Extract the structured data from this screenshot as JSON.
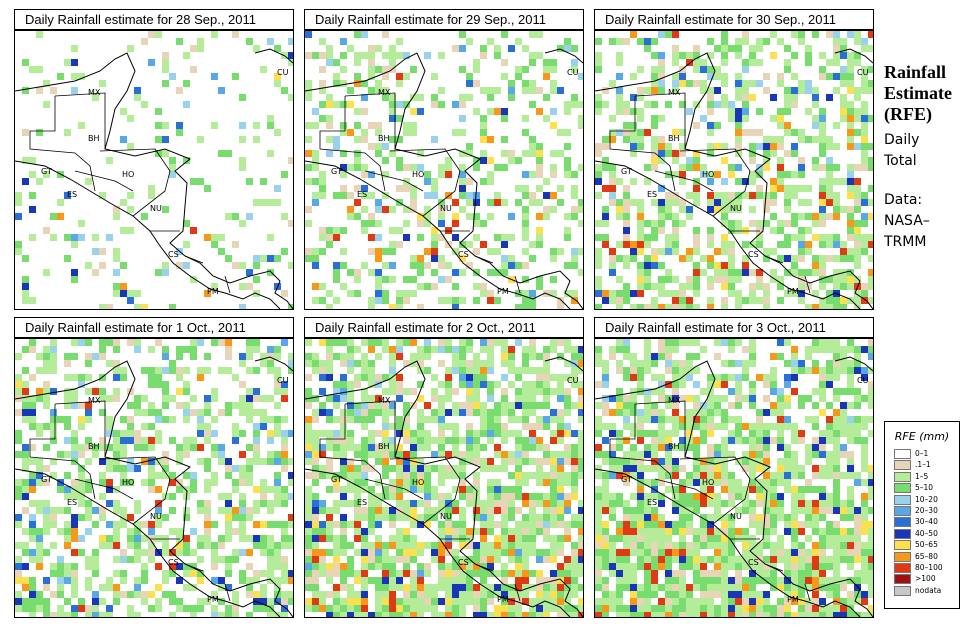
{
  "panels": [
    {
      "title": "Daily Rainfall estimate for  28 Sep., 2011",
      "wet": 0.12,
      "heavy": 0.05,
      "seed": 11
    },
    {
      "title": "Daily Rainfall estimate for  29 Sep., 2011",
      "wet": 0.3,
      "heavy": 0.18,
      "seed": 23
    },
    {
      "title": "Daily Rainfall estimate for  30 Sep., 2011",
      "wet": 0.42,
      "heavy": 0.35,
      "seed": 37
    },
    {
      "title": "Daily Rainfall estimate for  1 Oct., 2011",
      "wet": 0.45,
      "heavy": 0.25,
      "seed": 41
    },
    {
      "title": "Daily Rainfall estimate for  2 Oct., 2011",
      "wet": 0.62,
      "heavy": 0.4,
      "seed": 53
    },
    {
      "title": "Daily Rainfall estimate for  3 Oct., 2011",
      "wet": 0.58,
      "heavy": 0.55,
      "seed": 67
    }
  ],
  "countries": [
    "MX",
    "BH",
    "GT",
    "HO",
    "ES",
    "NU",
    "CS",
    "PM",
    "CU"
  ],
  "sidebar": {
    "title_lines": [
      "Rainfall",
      "Estimate",
      "(RFE)"
    ],
    "period_lines": [
      "Daily",
      "Total"
    ],
    "source_lines": [
      "Data:",
      "NASA–",
      "TRMM"
    ]
  },
  "legend": {
    "title": "RFE (mm)",
    "items": [
      {
        "label": "0–1",
        "color": "#ffffff"
      },
      {
        "label": ".1–1",
        "color": "#e8d5b7"
      },
      {
        "label": "1–5",
        "color": "#b4ec9a"
      },
      {
        "label": "5–10",
        "color": "#78dc6e"
      },
      {
        "label": "10–20",
        "color": "#9ad2ee"
      },
      {
        "label": "20–30",
        "color": "#58a8e8"
      },
      {
        "label": "30–40",
        "color": "#2a6ed8"
      },
      {
        "label": "40–50",
        "color": "#1a36b8"
      },
      {
        "label": "50–65",
        "color": "#fce050"
      },
      {
        "label": "65–80",
        "color": "#f89818"
      },
      {
        "label": "80–100",
        "color": "#e03a14"
      },
      {
        "label": ">100",
        "color": "#a01010"
      },
      {
        "label": "nodata",
        "color": "#c8c8c8"
      }
    ]
  }
}
